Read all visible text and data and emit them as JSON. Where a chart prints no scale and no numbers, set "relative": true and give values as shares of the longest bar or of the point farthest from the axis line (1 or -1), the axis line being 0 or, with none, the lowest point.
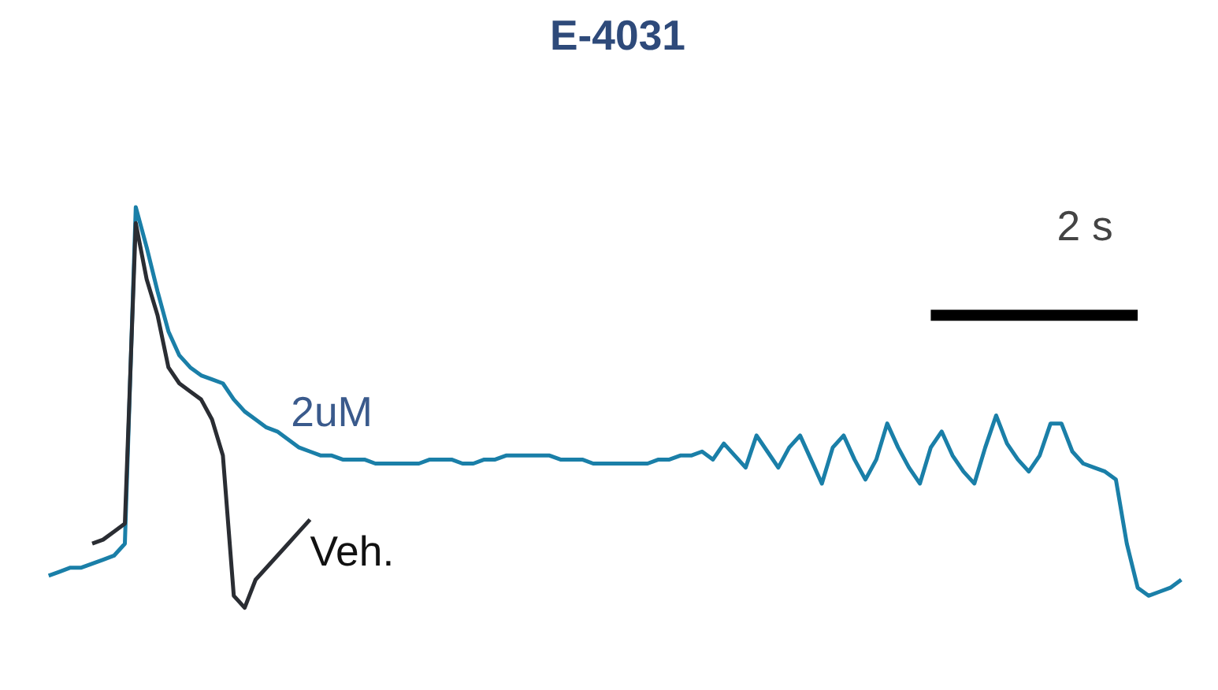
{
  "chart_data": {
    "type": "line",
    "title": "E-4031",
    "relative": true,
    "marker": "none",
    "line_style": "solid",
    "annotations": [
      "2 s"
    ],
    "categories": [
      null,
      null,
      null,
      null,
      null,
      null,
      null,
      null,
      null,
      null,
      null,
      null,
      null,
      null,
      null,
      null,
      null,
      null,
      null,
      null,
      null,
      null,
      null,
      null,
      null,
      null,
      null,
      null,
      null,
      null,
      null,
      null,
      null,
      null,
      null,
      null,
      null,
      null,
      null,
      null,
      null,
      null,
      null,
      null,
      null,
      null,
      null,
      null,
      null,
      null,
      null,
      null,
      null,
      null,
      null,
      null,
      null,
      null,
      null,
      null,
      null,
      null,
      null,
      null,
      null,
      null,
      null,
      null,
      null,
      null,
      null,
      null,
      null,
      null,
      null,
      null,
      null,
      null,
      null,
      null,
      null,
      null,
      null,
      null,
      null,
      null,
      null,
      null,
      null,
      null,
      null,
      null,
      null,
      null,
      null,
      null,
      null,
      null,
      null,
      null,
      null,
      null,
      null,
      null,
      null
    ],
    "series": [
      {
        "name": "2uM",
        "color": "#1a7fa8",
        "values": [
          0.08,
          0.09,
          0.1,
          0.1,
          0.11,
          0.12,
          0.13,
          0.16,
          1.0,
          0.9,
          0.79,
          0.69,
          0.63,
          0.6,
          0.58,
          0.57,
          0.56,
          0.52,
          0.49,
          0.47,
          0.45,
          0.44,
          0.42,
          0.4,
          0.39,
          0.38,
          0.38,
          0.37,
          0.37,
          0.37,
          0.36,
          0.36,
          0.36,
          0.36,
          0.36,
          0.37,
          0.37,
          0.37,
          0.36,
          0.36,
          0.37,
          0.37,
          0.38,
          0.38,
          0.38,
          0.38,
          0.38,
          0.37,
          0.37,
          0.37,
          0.36,
          0.36,
          0.36,
          0.36,
          0.36,
          0.36,
          0.37,
          0.37,
          0.38,
          0.38,
          0.39,
          0.37,
          0.41,
          0.38,
          0.35,
          0.43,
          0.39,
          0.35,
          0.4,
          0.43,
          0.37,
          0.31,
          0.4,
          0.43,
          0.37,
          0.32,
          0.37,
          0.46,
          0.4,
          0.35,
          0.31,
          0.4,
          0.44,
          0.38,
          0.34,
          0.31,
          0.4,
          0.48,
          0.41,
          0.37,
          0.34,
          0.38,
          0.46,
          0.46,
          0.39,
          0.36,
          0.35,
          0.34,
          0.32,
          0.16,
          0.05,
          0.03,
          0.04,
          0.05,
          0.07
        ]
      },
      {
        "name": "Veh.",
        "color": "#2a2d33",
        "values": [
          null,
          null,
          null,
          null,
          0.16,
          0.17,
          0.19,
          0.21,
          0.96,
          0.82,
          0.73,
          0.6,
          0.56,
          0.54,
          0.52,
          0.47,
          0.38,
          0.03,
          0.0,
          0.07,
          0.1,
          0.13,
          0.16,
          0.19,
          0.22,
          null,
          null,
          null,
          null,
          null,
          null,
          null,
          null,
          null,
          null,
          null,
          null,
          null,
          null,
          null,
          null,
          null,
          null,
          null,
          null,
          null,
          null,
          null,
          null,
          null,
          null,
          null,
          null,
          null,
          null,
          null,
          null,
          null,
          null,
          null,
          null,
          null,
          null,
          null,
          null,
          null,
          null,
          null,
          null,
          null,
          null,
          null,
          null,
          null,
          null,
          null,
          null,
          null,
          null,
          null,
          null,
          null,
          null,
          null,
          null,
          null,
          null,
          null,
          null,
          null,
          null,
          null,
          null,
          null,
          null,
          null,
          null,
          null,
          null,
          null,
          null,
          null,
          null,
          null,
          null
        ]
      },
      {
        "color": "#000000",
        "values": [
          null,
          null,
          null,
          null,
          null,
          null,
          null,
          null,
          null,
          null,
          null,
          null,
          null,
          null,
          null,
          null,
          null,
          null,
          null,
          null,
          null,
          null,
          null,
          null,
          null,
          null,
          null,
          null,
          null,
          null,
          null,
          null,
          null,
          null,
          null,
          null,
          null,
          null,
          null,
          null,
          null,
          null,
          null,
          null,
          null,
          null,
          null,
          null,
          null,
          null,
          null,
          null,
          null,
          null,
          null,
          null,
          null,
          null,
          null,
          null,
          null,
          null,
          null,
          null,
          null,
          null,
          null,
          null,
          null,
          null,
          null,
          null,
          null,
          null,
          null,
          null,
          null,
          null,
          null,
          null,
          null,
          0.73,
          0.73,
          0.73,
          0.73,
          0.73,
          0.73,
          0.73,
          0.73,
          0.73,
          0.73,
          0.73,
          0.73,
          0.73,
          0.73,
          0.73,
          0.73,
          0.73,
          0.73,
          0.73,
          0.73,
          null,
          null,
          null,
          null
        ]
      }
    ]
  }
}
